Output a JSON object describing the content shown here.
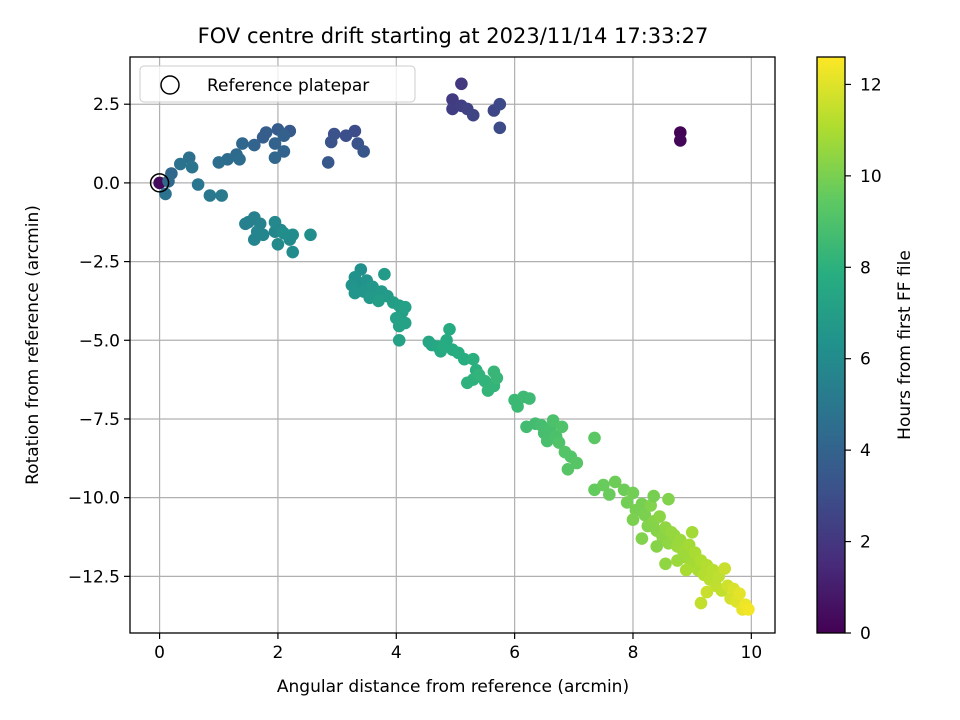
{
  "chart_data": {
    "type": "scatter",
    "title": "FOV centre drift starting at 2023/11/14 17:33:27",
    "xlabel": "Angular distance from reference (arcmin)",
    "ylabel": "Rotation from reference (arcmin)",
    "xlim": [
      -0.5,
      10.4
    ],
    "ylim": [
      -14.3,
      4.0
    ],
    "xticks": [
      0,
      2,
      4,
      6,
      8,
      10
    ],
    "xtick_labels": [
      "0",
      "2",
      "4",
      "6",
      "8",
      "10"
    ],
    "yticks": [
      2.5,
      0.0,
      -2.5,
      -5.0,
      -7.5,
      -10.0,
      -12.5
    ],
    "ytick_labels": [
      "2.5",
      "0.0",
      "−2.5",
      "−5.0",
      "−7.5",
      "−10.0",
      "−12.5"
    ],
    "grid": true,
    "legend": {
      "position": "top-left",
      "entries": [
        "Reference platepar"
      ]
    },
    "reference_point": {
      "x": 0.0,
      "y": 0.0
    },
    "colorbar": {
      "label": "Hours from first FF file",
      "colormap": "viridis",
      "min": 0,
      "max": 12.6,
      "ticks": [
        0,
        2,
        4,
        6,
        8,
        10,
        12
      ],
      "tick_labels": [
        "0",
        "2",
        "4",
        "6",
        "8",
        "10",
        "12"
      ]
    },
    "points": [
      [
        8.8,
        1.6,
        0.1
      ],
      [
        8.8,
        1.35,
        0.2
      ],
      [
        0.0,
        0.0,
        0.3
      ],
      [
        5.1,
        3.15,
        2.1
      ],
      [
        4.95,
        2.65,
        2.2
      ],
      [
        4.95,
        2.35,
        2.3
      ],
      [
        5.1,
        2.45,
        2.4
      ],
      [
        5.2,
        2.35,
        2.5
      ],
      [
        5.3,
        2.15,
        2.6
      ],
      [
        5.65,
        2.3,
        2.7
      ],
      [
        5.75,
        2.5,
        2.8
      ],
      [
        5.75,
        1.75,
        2.9
      ],
      [
        3.3,
        1.65,
        3.0
      ],
      [
        3.15,
        1.5,
        3.1
      ],
      [
        2.95,
        1.55,
        3.2
      ],
      [
        2.9,
        1.3,
        3.3
      ],
      [
        3.35,
        1.25,
        3.3
      ],
      [
        3.45,
        1.0,
        3.4
      ],
      [
        2.85,
        0.65,
        3.5
      ],
      [
        2.2,
        1.65,
        3.6
      ],
      [
        2.0,
        1.7,
        3.7
      ],
      [
        1.8,
        1.6,
        3.8
      ],
      [
        1.75,
        1.45,
        3.8
      ],
      [
        2.1,
        1.5,
        3.9
      ],
      [
        1.95,
        1.25,
        4.0
      ],
      [
        1.6,
        1.2,
        4.1
      ],
      [
        2.1,
        1.0,
        4.1
      ],
      [
        1.95,
        0.8,
        4.2
      ],
      [
        1.4,
        1.25,
        4.3
      ],
      [
        1.3,
        0.9,
        4.4
      ],
      [
        1.35,
        0.75,
        4.5
      ],
      [
        1.15,
        0.75,
        4.5
      ],
      [
        1.0,
        0.65,
        4.6
      ],
      [
        0.5,
        0.8,
        4.7
      ],
      [
        0.35,
        0.6,
        4.8
      ],
      [
        0.55,
        0.5,
        4.9
      ],
      [
        0.2,
        0.3,
        4.3
      ],
      [
        0.15,
        0.05,
        4.4
      ],
      [
        0.1,
        -0.35,
        4.8
      ],
      [
        0.65,
        -0.05,
        5.0
      ],
      [
        0.85,
        -0.4,
        5.1
      ],
      [
        1.05,
        -0.4,
        5.2
      ],
      [
        1.5,
        -1.25,
        5.4
      ],
      [
        1.6,
        -1.1,
        5.5
      ],
      [
        1.45,
        -1.3,
        5.5
      ],
      [
        1.7,
        -1.3,
        5.6
      ],
      [
        1.65,
        -1.55,
        5.7
      ],
      [
        1.6,
        -1.8,
        5.7
      ],
      [
        1.75,
        -1.65,
        5.8
      ],
      [
        1.95,
        -1.55,
        5.8
      ],
      [
        1.95,
        -1.25,
        5.9
      ],
      [
        2.05,
        -1.5,
        5.9
      ],
      [
        2.0,
        -1.95,
        6.0
      ],
      [
        2.2,
        -1.8,
        6.0
      ],
      [
        2.25,
        -1.65,
        6.1
      ],
      [
        2.25,
        -2.2,
        6.1
      ],
      [
        2.55,
        -1.65,
        6.2
      ],
      [
        2.1,
        -1.6,
        6.2
      ],
      [
        3.4,
        -2.75,
        6.3
      ],
      [
        3.3,
        -3.0,
        6.4
      ],
      [
        3.35,
        -3.2,
        6.4
      ],
      [
        3.25,
        -3.25,
        6.5
      ],
      [
        3.5,
        -3.1,
        6.5
      ],
      [
        3.3,
        -3.5,
        6.6
      ],
      [
        3.45,
        -3.45,
        6.6
      ],
      [
        3.6,
        -3.3,
        6.7
      ],
      [
        3.65,
        -3.5,
        6.7
      ],
      [
        3.75,
        -3.45,
        6.8
      ],
      [
        3.55,
        -3.65,
        6.8
      ],
      [
        3.8,
        -2.9,
        6.9
      ],
      [
        3.85,
        -3.6,
        6.9
      ],
      [
        3.7,
        -3.75,
        7.0
      ],
      [
        3.95,
        -3.8,
        7.0
      ],
      [
        4.05,
        -3.9,
        7.1
      ],
      [
        4.1,
        -4.1,
        7.1
      ],
      [
        4.15,
        -3.95,
        7.2
      ],
      [
        4.0,
        -4.3,
        7.2
      ],
      [
        4.05,
        -4.55,
        7.3
      ],
      [
        4.15,
        -4.45,
        7.3
      ],
      [
        4.05,
        -5.0,
        7.3
      ],
      [
        4.55,
        -5.05,
        7.5
      ],
      [
        4.6,
        -5.15,
        7.5
      ],
      [
        4.7,
        -5.2,
        7.6
      ],
      [
        4.75,
        -5.35,
        7.6
      ],
      [
        4.85,
        -5.0,
        7.7
      ],
      [
        4.9,
        -4.65,
        7.7
      ],
      [
        4.8,
        -5.2,
        7.8
      ],
      [
        4.95,
        -5.3,
        7.8
      ],
      [
        5.05,
        -5.4,
        7.9
      ],
      [
        5.15,
        -5.6,
        7.9
      ],
      [
        5.3,
        -5.6,
        8.0
      ],
      [
        5.35,
        -5.95,
        8.0
      ],
      [
        5.2,
        -6.35,
        8.1
      ],
      [
        5.3,
        -6.25,
        8.1
      ],
      [
        5.4,
        -6.1,
        8.2
      ],
      [
        5.5,
        -6.3,
        8.2
      ],
      [
        5.55,
        -6.6,
        8.3
      ],
      [
        5.65,
        -6.45,
        8.3
      ],
      [
        5.7,
        -6.2,
        8.4
      ],
      [
        5.65,
        -6.0,
        8.4
      ],
      [
        6.0,
        -6.9,
        8.5
      ],
      [
        6.05,
        -7.1,
        8.5
      ],
      [
        6.15,
        -6.8,
        8.6
      ],
      [
        6.25,
        -6.85,
        8.6
      ],
      [
        6.2,
        -7.75,
        8.7
      ],
      [
        6.35,
        -7.65,
        8.7
      ],
      [
        6.45,
        -7.7,
        8.8
      ],
      [
        6.5,
        -7.95,
        8.8
      ],
      [
        6.55,
        -8.2,
        8.9
      ],
      [
        6.6,
        -7.8,
        8.9
      ],
      [
        6.65,
        -7.55,
        9.0
      ],
      [
        6.7,
        -8.05,
        9.0
      ],
      [
        6.8,
        -7.75,
        9.1
      ],
      [
        6.75,
        -8.25,
        9.1
      ],
      [
        6.85,
        -8.55,
        9.2
      ],
      [
        6.95,
        -8.7,
        9.2
      ],
      [
        6.9,
        -9.1,
        9.3
      ],
      [
        7.05,
        -8.9,
        9.3
      ],
      [
        7.35,
        -8.1,
        9.4
      ],
      [
        7.35,
        -9.75,
        9.6
      ],
      [
        7.5,
        -9.6,
        9.7
      ],
      [
        7.6,
        -9.9,
        9.7
      ],
      [
        7.7,
        -9.5,
        9.8
      ],
      [
        7.85,
        -9.75,
        9.8
      ],
      [
        7.9,
        -10.15,
        9.9
      ],
      [
        8.0,
        -9.85,
        9.9
      ],
      [
        8.05,
        -10.4,
        10.0
      ],
      [
        8.15,
        -10.2,
        10.0
      ],
      [
        8.2,
        -10.55,
        10.1
      ],
      [
        8.3,
        -10.25,
        10.2
      ],
      [
        8.25,
        -10.9,
        10.2
      ],
      [
        8.35,
        -10.75,
        10.3
      ],
      [
        8.4,
        -11.05,
        10.3
      ],
      [
        8.45,
        -10.6,
        10.4
      ],
      [
        8.5,
        -11.25,
        10.4
      ],
      [
        8.55,
        -10.95,
        10.5
      ],
      [
        8.6,
        -11.45,
        10.5
      ],
      [
        8.65,
        -11.1,
        10.6
      ],
      [
        8.7,
        -11.2,
        10.6
      ],
      [
        8.75,
        -11.55,
        10.7
      ],
      [
        8.8,
        -11.35,
        10.7
      ],
      [
        8.85,
        -11.7,
        10.8
      ],
      [
        8.9,
        -11.9,
        10.8
      ],
      [
        8.95,
        -11.5,
        10.9
      ],
      [
        9.0,
        -12.1,
        10.9
      ],
      [
        9.05,
        -11.75,
        11.0
      ],
      [
        9.1,
        -12.3,
        11.0
      ],
      [
        9.15,
        -12.0,
        11.1
      ],
      [
        9.2,
        -12.45,
        11.2
      ],
      [
        9.25,
        -12.15,
        11.2
      ],
      [
        9.3,
        -12.6,
        11.3
      ],
      [
        9.35,
        -12.3,
        11.3
      ],
      [
        9.4,
        -12.8,
        11.4
      ],
      [
        9.45,
        -12.5,
        11.4
      ],
      [
        9.5,
        -12.95,
        11.5
      ],
      [
        9.15,
        -13.35,
        11.5
      ],
      [
        9.25,
        -13.0,
        11.6
      ],
      [
        9.6,
        -12.8,
        11.7
      ],
      [
        9.65,
        -13.2,
        11.8
      ],
      [
        9.7,
        -12.9,
        11.9
      ],
      [
        9.75,
        -13.3,
        12.0
      ],
      [
        9.8,
        -13.05,
        12.1
      ],
      [
        9.85,
        -13.55,
        12.2
      ],
      [
        9.9,
        -13.4,
        12.3
      ],
      [
        9.95,
        -13.55,
        12.4
      ],
      [
        8.0,
        -10.7,
        10.1
      ],
      [
        8.4,
        -11.55,
        10.3
      ],
      [
        8.55,
        -12.1,
        10.5
      ],
      [
        8.75,
        -12.0,
        10.7
      ],
      [
        8.6,
        -10.05,
        10.2
      ],
      [
        8.15,
        -11.3,
        10.2
      ],
      [
        8.35,
        -9.95,
        10.0
      ],
      [
        9.0,
        -11.1,
        10.9
      ],
      [
        8.9,
        -12.3,
        11.0
      ],
      [
        9.55,
        -12.25,
        11.6
      ]
    ]
  }
}
